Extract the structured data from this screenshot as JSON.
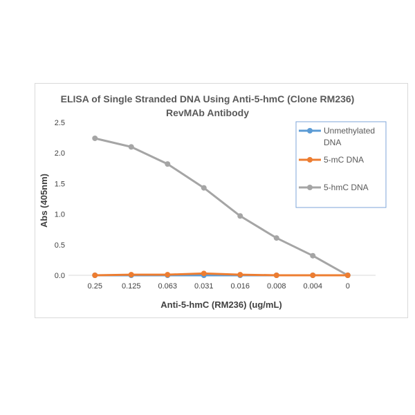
{
  "chart_data": {
    "type": "line",
    "title_lines": [
      "ELISA of Single Stranded DNA Using Anti-5-hmC (Clone RM236)",
      "RevMAb Antibody"
    ],
    "xlabel": "Anti-5-hmC (RM236) (ug/mL)",
    "ylabel": "Abs (405nm)",
    "categories": [
      "0.25",
      "0.125",
      "0.063",
      "0.031",
      "0.016",
      "0.008",
      "0.004",
      "0"
    ],
    "ylim": [
      0,
      2.5
    ],
    "yticks": [
      "0.0",
      "0.5",
      "1.0",
      "1.5",
      "2.0",
      "2.5"
    ],
    "grid": false,
    "legend_position": "top-right",
    "series": [
      {
        "name": "Unmethylated DNA",
        "legend_lines": [
          "Unmethylated",
          "DNA"
        ],
        "color": "#5b9bd5",
        "values": [
          0.0,
          0.0,
          0.0,
          0.0,
          0.0,
          0.0,
          0.0,
          0.0
        ]
      },
      {
        "name": "5-mC DNA",
        "legend_lines": [
          "5-mC DNA"
        ],
        "color": "#ed7d31",
        "values": [
          0.0,
          0.01,
          0.01,
          0.03,
          0.01,
          0.0,
          0.0,
          0.0
        ]
      },
      {
        "name": "5-hmC DNA",
        "legend_lines": [
          "5-hmC DNA"
        ],
        "color": "#a5a5a5",
        "values": [
          2.24,
          2.1,
          1.82,
          1.43,
          0.97,
          0.61,
          0.32,
          0.0
        ]
      }
    ]
  }
}
